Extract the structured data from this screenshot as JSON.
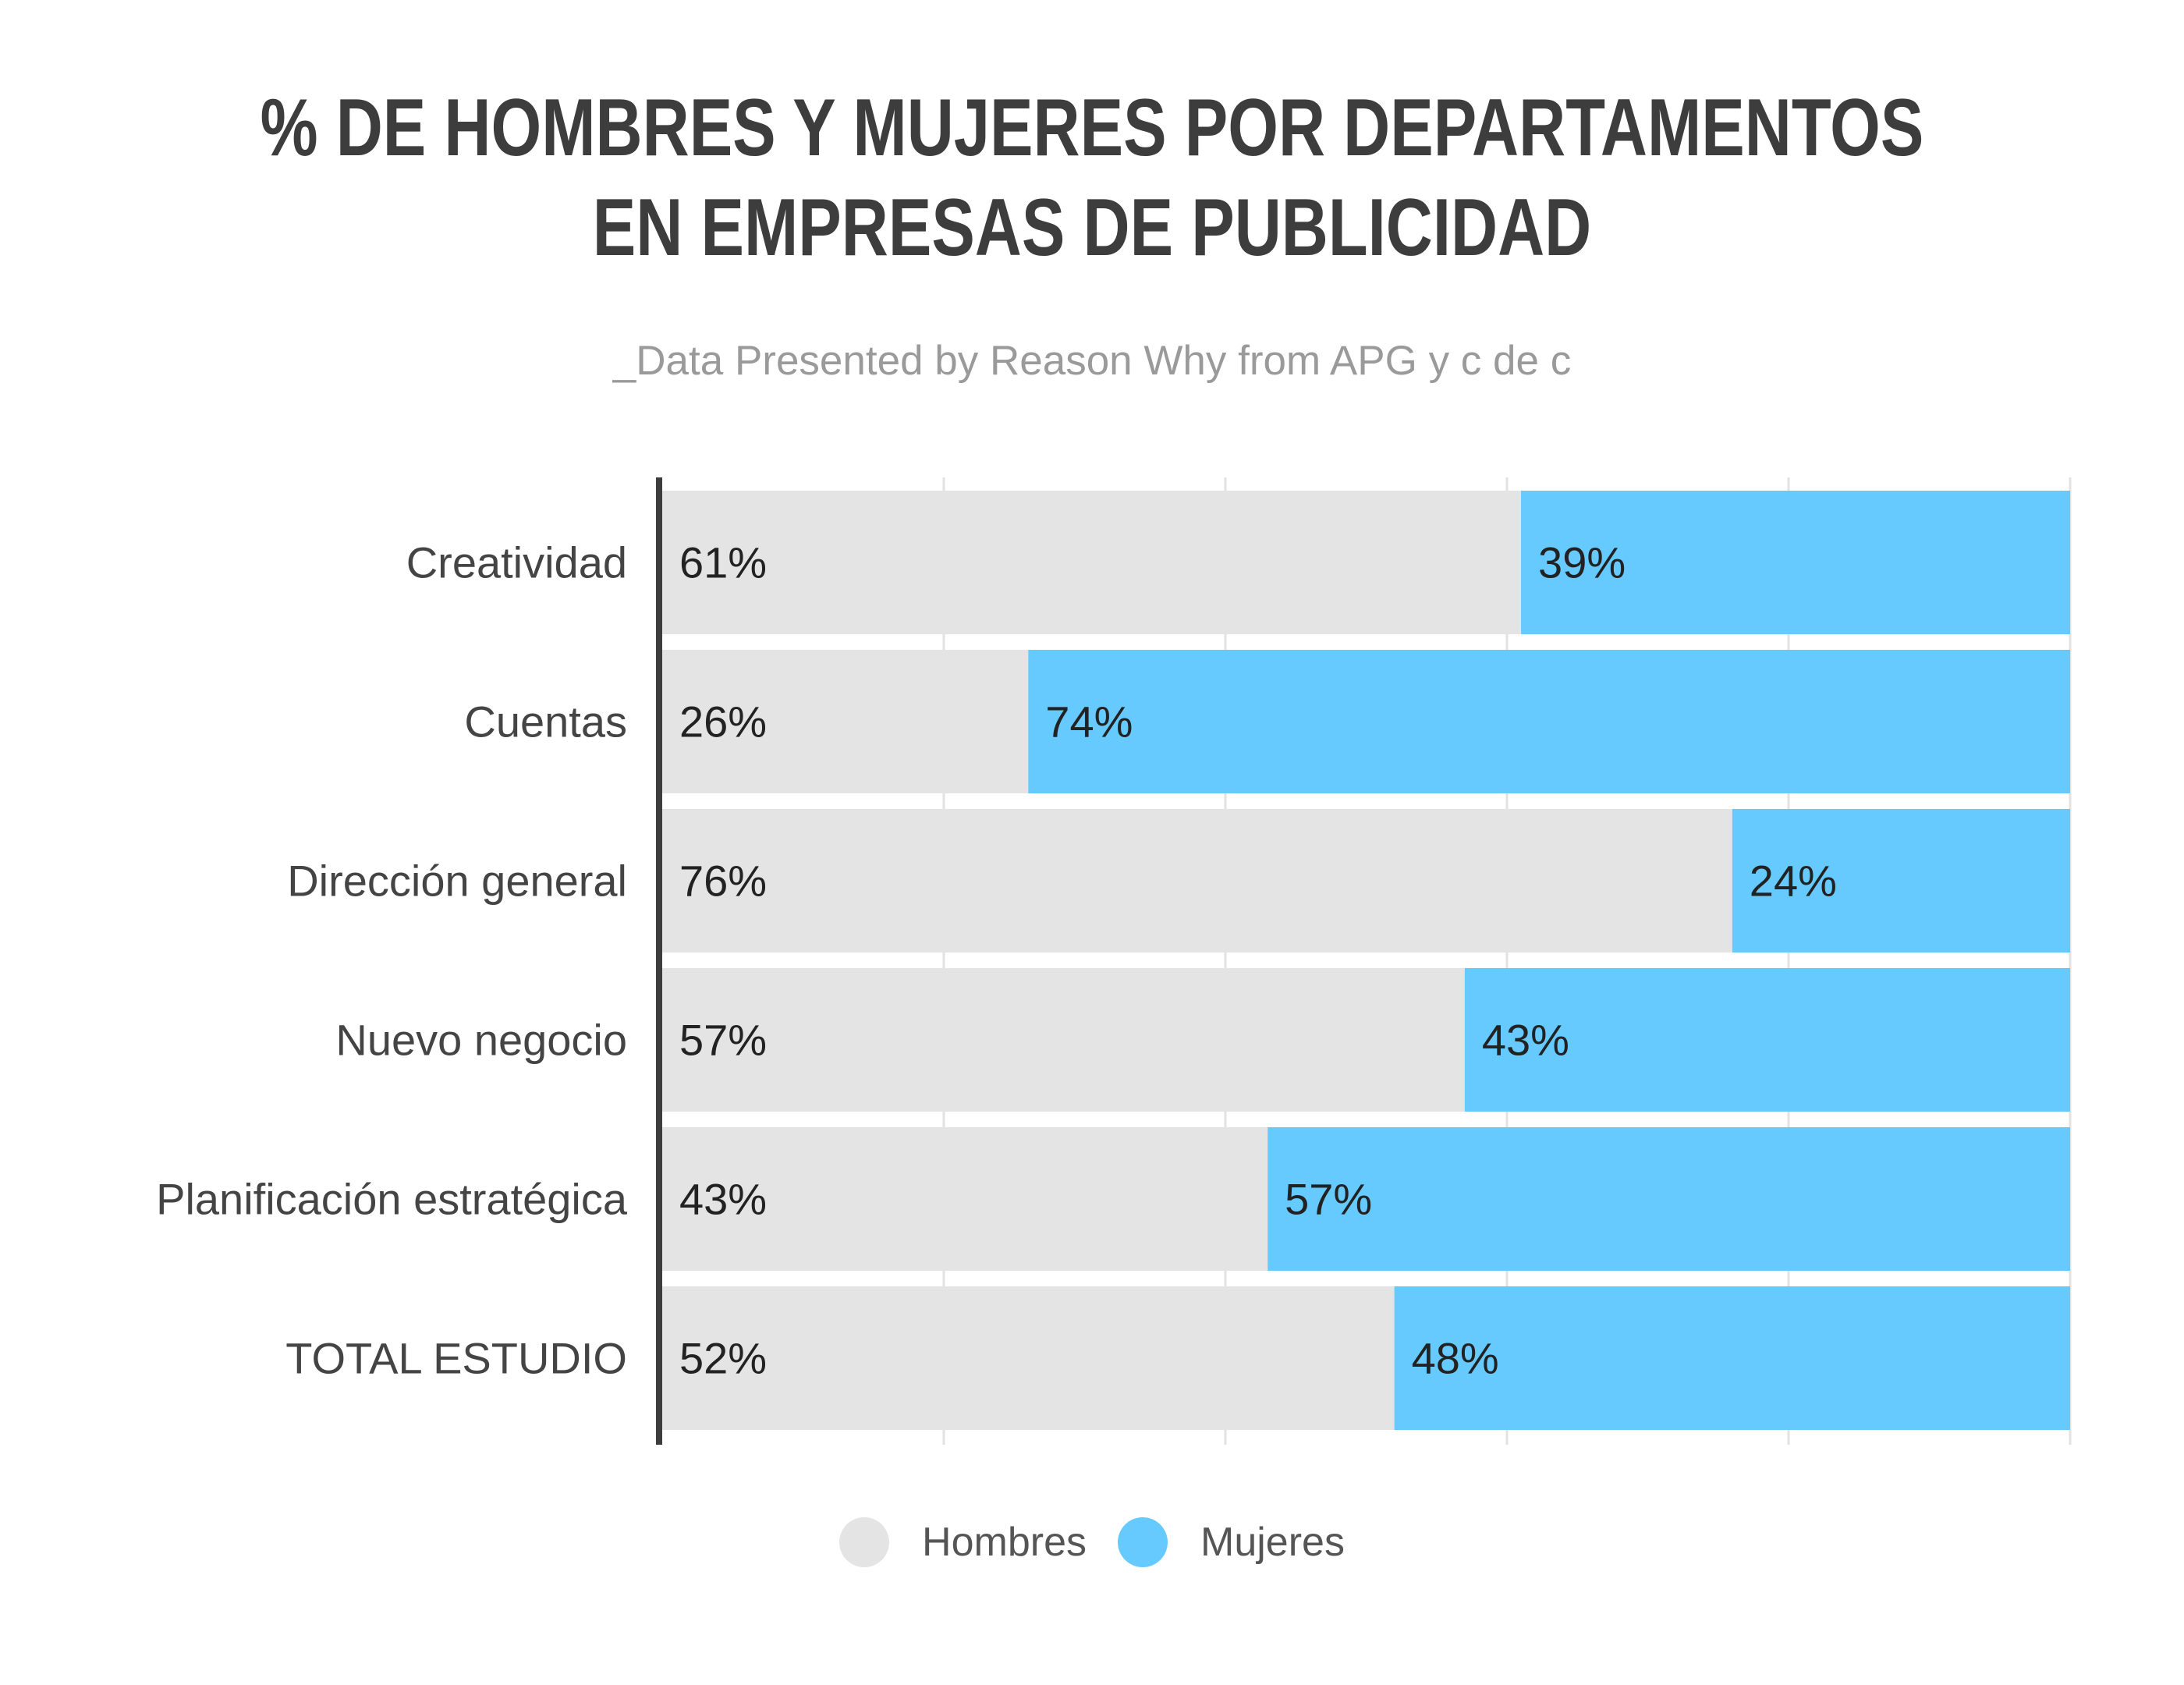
{
  "title_lines": [
    "% DE HOMBRES Y MUJERES POR DEPARTAMENTOS",
    "EN EMPRESAS DE PUBLICIDAD"
  ],
  "subtitle": "_Data Presented by Reason Why from APG y c de c",
  "colors": {
    "hombres": "#e4e4e4",
    "mujeres": "#66caff",
    "axis": "#3d3d3d",
    "grid": "#e2e2e2"
  },
  "legend": [
    {
      "label": "Hombres",
      "color": "#e4e4e4"
    },
    {
      "label": "Mujeres",
      "color": "#66caff"
    }
  ],
  "chart_data": {
    "type": "bar",
    "orientation": "horizontal",
    "stacked": true,
    "title": "% DE HOMBRES Y MUJERES POR DEPARTAMENTOS EN EMPRESAS DE PUBLICIDAD",
    "subtitle": "_Data Presented by Reason Why from APG y c de c",
    "categories": [
      "Creatividad",
      "Cuentas",
      "Dirección general",
      "Nuevo negocio",
      "Planificación estratégica",
      "TOTAL ESTUDIO"
    ],
    "series": [
      {
        "name": "Hombres",
        "values": [
          61,
          26,
          76,
          57,
          43,
          52
        ],
        "labels": [
          "61%",
          "26%",
          "76%",
          "57%",
          "43%",
          "52%"
        ],
        "color": "#e4e4e4"
      },
      {
        "name": "Mujeres",
        "values": [
          39,
          74,
          24,
          43,
          57,
          48
        ],
        "labels": [
          "39%",
          "74%",
          "24%",
          "43%",
          "57%",
          "48%"
        ],
        "color": "#66caff"
      }
    ],
    "xlim": [
      0,
      100
    ],
    "grid": true,
    "legend_position": "bottom"
  }
}
